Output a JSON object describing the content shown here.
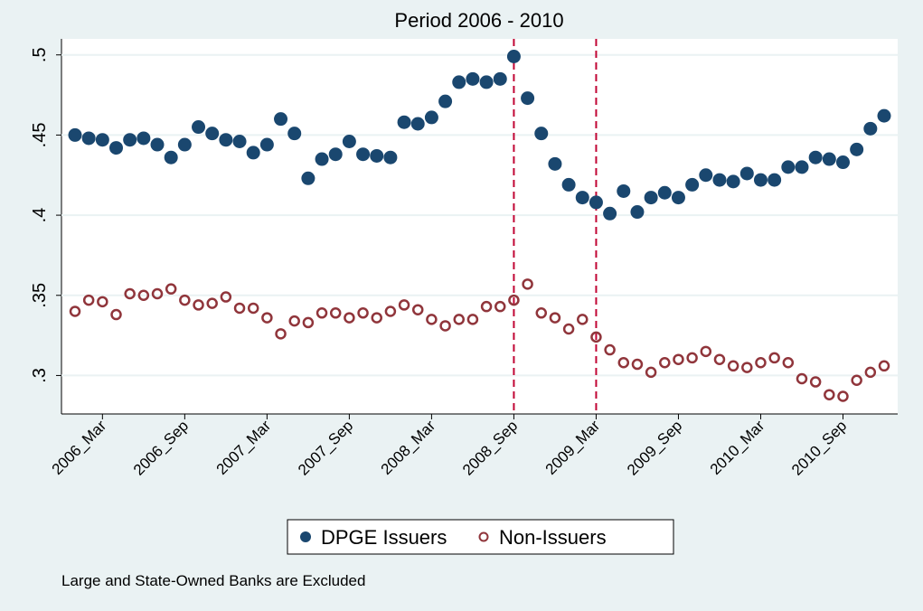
{
  "chart_data": {
    "type": "scatter",
    "title": "Period 2006 - 2010",
    "note": "Large and State-Owned Banks are Excluded",
    "categories": [
      null,
      null,
      "2006_Mar",
      null,
      null,
      null,
      null,
      null,
      "2006_Sep",
      null,
      null,
      null,
      null,
      null,
      "2007_Mar",
      null,
      null,
      null,
      null,
      null,
      "2007_Sep",
      null,
      null,
      null,
      null,
      null,
      "2008_Mar",
      null,
      null,
      null,
      null,
      null,
      "2008_Sep",
      null,
      null,
      null,
      null,
      null,
      "2009_Mar",
      null,
      null,
      null,
      null,
      null,
      "2009_Sep",
      null,
      null,
      null,
      null,
      null,
      "2010_Mar",
      null,
      null,
      null,
      null,
      null,
      "2010_Sep",
      null,
      null,
      null
    ],
    "series": [
      {
        "name": "DPGE Issuers",
        "color": "#1a476f",
        "filled": true,
        "values": [
          0.45,
          0.448,
          0.447,
          0.442,
          0.447,
          0.448,
          0.444,
          0.436,
          0.444,
          0.455,
          0.451,
          0.447,
          0.446,
          0.439,
          0.444,
          0.46,
          0.451,
          0.423,
          0.435,
          0.438,
          0.446,
          0.438,
          0.437,
          0.436,
          0.458,
          0.457,
          0.461,
          0.471,
          0.483,
          0.485,
          0.483,
          0.485,
          0.499,
          0.473,
          0.451,
          0.432,
          0.419,
          0.411,
          0.408,
          0.401,
          0.415,
          0.402,
          0.411,
          0.414,
          0.411,
          0.419,
          0.425,
          0.422,
          0.421,
          0.426,
          0.422,
          0.422,
          0.43,
          0.43,
          0.436,
          0.435,
          0.433,
          0.441,
          0.454,
          0.462
        ]
      },
      {
        "name": "Non-Issuers",
        "color": "#90353b",
        "filled": false,
        "values": [
          0.34,
          0.347,
          0.346,
          0.338,
          0.351,
          0.35,
          0.351,
          0.354,
          0.347,
          0.344,
          0.345,
          0.349,
          0.342,
          0.342,
          0.336,
          0.326,
          0.334,
          0.333,
          0.339,
          0.339,
          0.336,
          0.339,
          0.336,
          0.34,
          0.344,
          0.341,
          0.335,
          0.331,
          0.335,
          0.335,
          0.343,
          0.343,
          0.347,
          0.357,
          0.339,
          0.336,
          0.329,
          0.335,
          0.324,
          0.316,
          0.308,
          0.307,
          0.302,
          0.308,
          0.31,
          0.311,
          0.315,
          0.31,
          0.306,
          0.305,
          0.308,
          0.311,
          0.308,
          0.298,
          0.296,
          0.288,
          0.287,
          0.297,
          0.302,
          0.306
        ]
      }
    ],
    "ylim": [
      0.276,
      0.51
    ],
    "yticks": [
      {
        "value": 0.3,
        "label": ".3"
      },
      {
        "value": 0.35,
        "label": ".35"
      },
      {
        "value": 0.4,
        "label": ".4"
      },
      {
        "value": 0.45,
        "label": ".45"
      },
      {
        "value": 0.5,
        "label": ".5"
      }
    ],
    "grid": true,
    "vlines": [
      "2008_Sep",
      "2009_Mar"
    ],
    "vline_color": "#c10534"
  }
}
